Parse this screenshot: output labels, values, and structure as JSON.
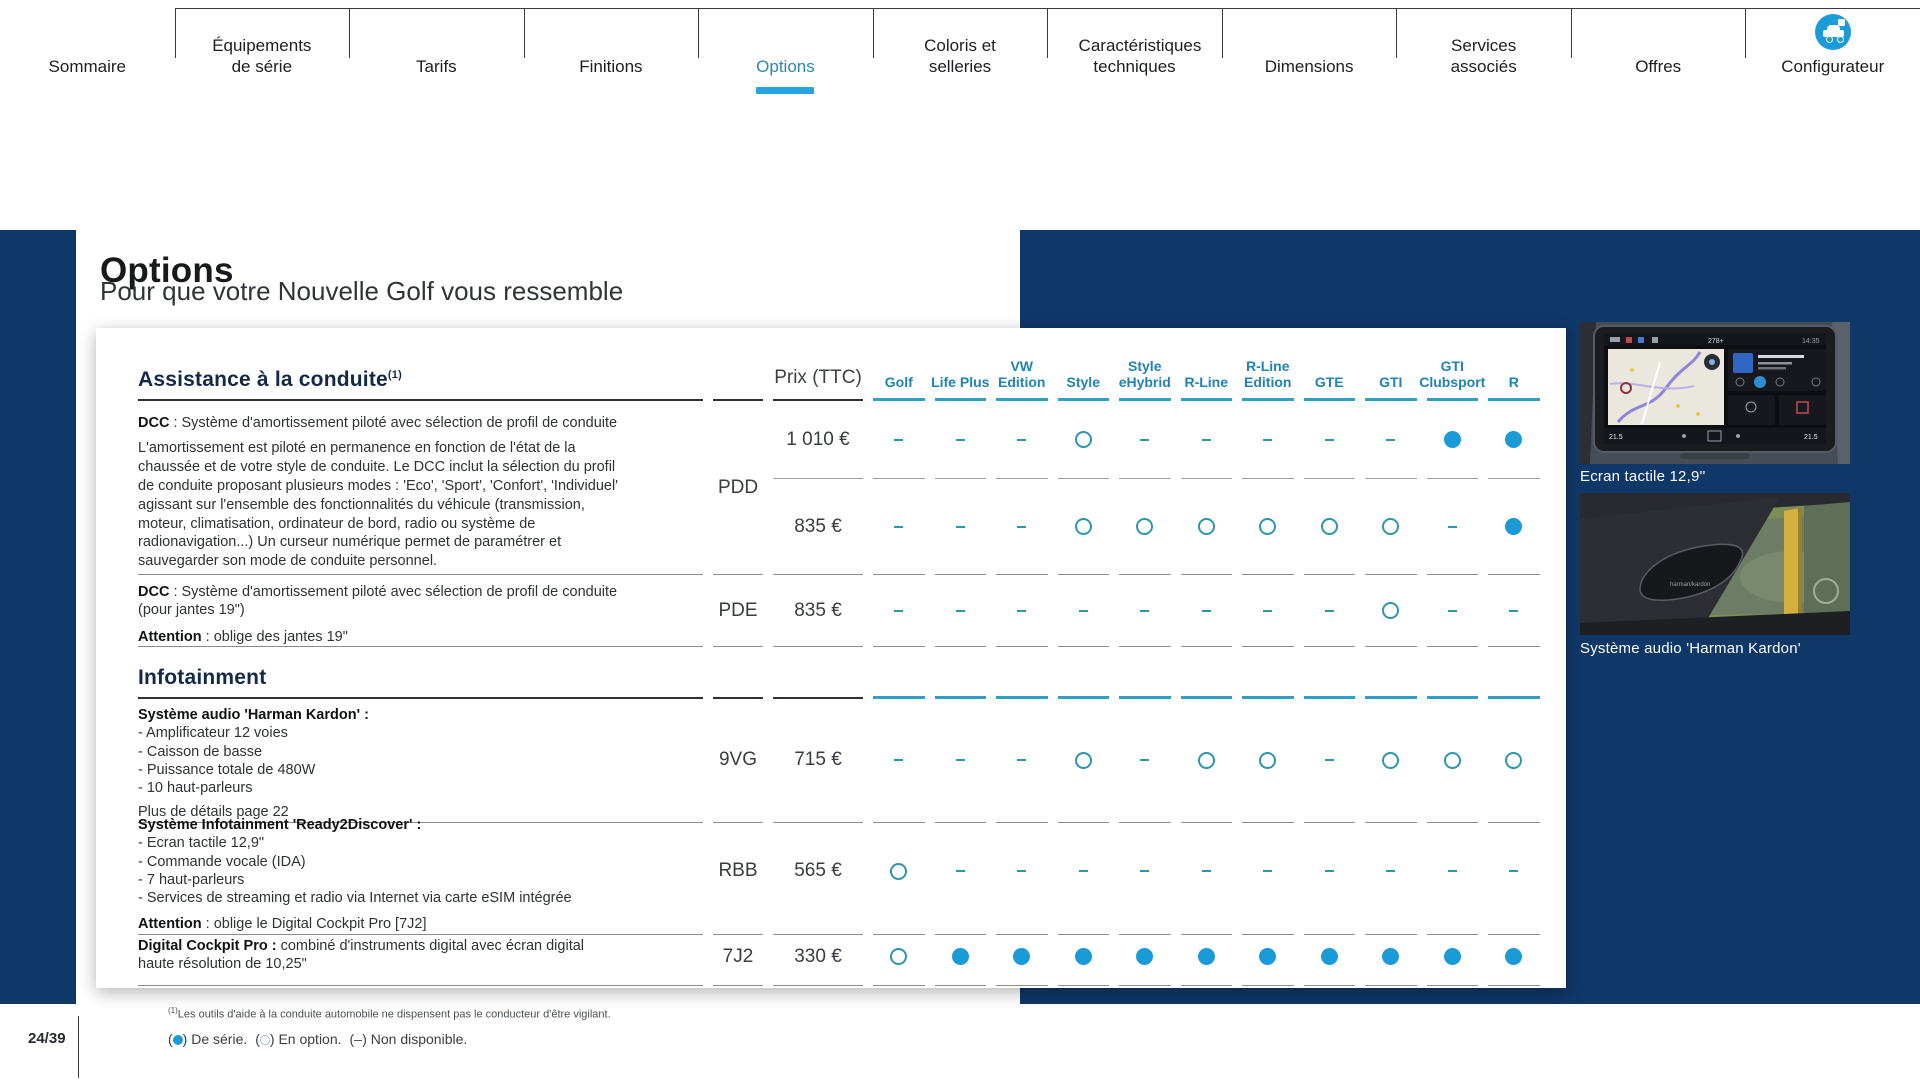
{
  "nav": {
    "tabs": [
      {
        "label": "Sommaire"
      },
      {
        "label": "Équipements de série"
      },
      {
        "label": "Tarifs"
      },
      {
        "label": "Finitions"
      },
      {
        "label": "Options",
        "active": true
      },
      {
        "label": "Coloris et selleries"
      },
      {
        "label": "Caractéristiques techniques"
      },
      {
        "label": "Dimensions"
      },
      {
        "label": "Services associés"
      },
      {
        "label": "Offres"
      },
      {
        "label": "Configurateur",
        "icon": "configurator-car-icon"
      }
    ]
  },
  "page": {
    "title": "Options",
    "subtitle": "Pour que votre Nouvelle Golf vous ressemble",
    "page_number": "24/39"
  },
  "table": {
    "price_header": "Prix (TTC)",
    "trims": [
      [
        "Golf"
      ],
      [
        "Life Plus"
      ],
      [
        "VW",
        "Edition"
      ],
      [
        "Style"
      ],
      [
        "Style",
        "eHybrid"
      ],
      [
        "R-Line"
      ],
      [
        "R-Line",
        "Edition"
      ],
      [
        "GTE"
      ],
      [
        "GTI"
      ],
      [
        "GTI",
        "Clubsport"
      ],
      [
        "R"
      ]
    ],
    "value_key": {
      "F": "standard",
      "O": "optional",
      "-": "not-available"
    },
    "sections": [
      {
        "heading": "Assistance à la conduite",
        "sup": "(1)",
        "rows": [
          {
            "code": "PDD",
            "desc": [
              {
                "b": "DCC",
                "t": " : Système d'amortissement piloté avec sélection de profil de conduite"
              },
              {
                "t": "L'amortissement est piloté en permanence en fonction de l'état de la chaussée et de votre style de conduite. Le DCC inclut la sélection du profil de conduite proposant plusieurs modes : 'Eco', 'Sport', 'Confort', 'Individuel' agissant sur l'ensemble des fonctionnalités du véhicule (transmission, moteur, climatisation, ordinateur de bord, radio ou système de radionavigation...) Un curseur numérique permet de paramétrer et sauvegarder son mode de conduite personnel.",
                "cls": "para"
              }
            ],
            "subrows": [
              {
                "price": "1 010 €",
                "values": "---O-----FF"
              },
              {
                "price": "835 €",
                "values": "---OOOOOO-F"
              }
            ]
          },
          {
            "code": "PDE",
            "desc": [
              {
                "b": "DCC",
                "t": " : Système d'amortissement piloté avec sélection de profil de conduite (pour jantes 19\")"
              },
              {
                "b": "Attention",
                "t": " : oblige des jantes 19\"",
                "cls": "attn"
              }
            ],
            "subrows": [
              {
                "price": "835 €",
                "values": "--------O--"
              }
            ]
          }
        ]
      },
      {
        "heading": "Infotainment",
        "sup": "",
        "rows": [
          {
            "code": "9VG",
            "desc": [
              {
                "b": "Système audio 'Harman Kardon' :",
                "t": ""
              },
              {
                "t": "- Amplificateur 12 voies",
                "cls": "li"
              },
              {
                "t": "- Caisson de basse",
                "cls": "li"
              },
              {
                "t": "- Puissance totale de 480W",
                "cls": "li"
              },
              {
                "t": "- 10 haut-parleurs",
                "cls": "li"
              },
              {
                "t": "Plus de détails page 22",
                "cls": "note"
              }
            ],
            "subrows": [
              {
                "price": "715 €",
                "values": "---O-OO-OOO"
              }
            ]
          },
          {
            "code": "RBB",
            "desc": [
              {
                "b": "Système Infotainment 'Ready2Discover' :",
                "t": ""
              },
              {
                "t": "- Ecran tactile 12,9\"",
                "cls": "li"
              },
              {
                "t": "- Commande vocale (IDA)",
                "cls": "li"
              },
              {
                "t": "- 7 haut-parleurs",
                "cls": "li"
              },
              {
                "t": "- Services de streaming et radio via Internet via carte eSIM intégrée",
                "cls": "li"
              },
              {
                "b": "Attention",
                "t": " : oblige le Digital Cockpit Pro [7J2]",
                "cls": "attn"
              }
            ],
            "subrows": [
              {
                "price": "565 €",
                "values": "O----------"
              }
            ]
          },
          {
            "code": "7J2",
            "desc": [
              {
                "b": "Digital Cockpit Pro :",
                "t": " combiné d'instruments digital avec écran digital haute résolution de 10,25\""
              }
            ],
            "subrows": [
              {
                "price": "330 €",
                "values": "OFFFFFFFFFF"
              }
            ]
          }
        ]
      }
    ]
  },
  "sidebar": {
    "images": [
      {
        "caption": "Ecran tactile 12,9''"
      },
      {
        "caption": "Système audio 'Harman Kardon'"
      }
    ]
  },
  "footnote": {
    "sup": "(1)",
    "text": "Les outils d'aide à la conduite automobile ne dispensent pas le conducteur d'être vigilant."
  },
  "legend": {
    "items": [
      {
        "sym": "F",
        "label": "De série."
      },
      {
        "sym": "O",
        "label": "En option."
      },
      {
        "sym": "D",
        "label": "Non disponible."
      }
    ]
  },
  "colors": {
    "navy_panel": "#0f3768",
    "accent_blue": "#1a9bd7",
    "teal_symbol": "#2e96ab",
    "header_blue": "#1f83b3",
    "active_tab_underline": "#2aa4dc"
  }
}
